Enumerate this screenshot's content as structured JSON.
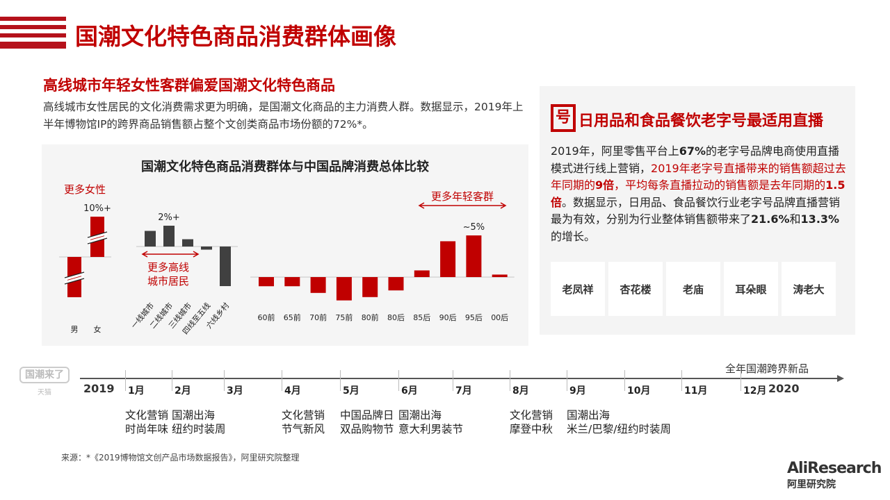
{
  "header": {
    "title": "国潮文化特色商品消费群体画像"
  },
  "left": {
    "subtitle": "高线城市年轻女性客群偏爱国潮文化特色商品",
    "paragraph": "高线城市女性居民的文化消费需求更为明确，是国潮文化商品的主力消费人群。数据显示，2019年上半年博物馆IP的跨界商品销售额占整个文创类商品市场份额的72%*。"
  },
  "chart_data": {
    "type": "bar",
    "title": "国潮文化特色商品消费群体与中国品牌消费总体比较",
    "groups": [
      {
        "categories": [
          "男",
          "女"
        ],
        "values": [
          -10,
          10
        ],
        "labels": [
          "",
          "10%+"
        ],
        "annotation": "更多女性",
        "axis_break": true,
        "color": "#c00000"
      },
      {
        "categories": [
          "一线城市",
          "二线城市",
          "三线城市",
          "四线至五线",
          "六线乡村"
        ],
        "values": [
          1.5,
          2.0,
          0.7,
          -0.3,
          -3.8
        ],
        "labels": [
          "",
          "2%+",
          "",
          "",
          ""
        ],
        "annotation": "更多高线城市居民",
        "color": "#404040"
      },
      {
        "categories": [
          "60前",
          "65前",
          "70前",
          "75前",
          "80前",
          "80后",
          "85后",
          "90后",
          "95后",
          "00后"
        ],
        "values": [
          -1.1,
          -1.1,
          -1.9,
          -2.8,
          -2.4,
          -1.6,
          0.8,
          4.3,
          5,
          0.3
        ],
        "labels": [
          "",
          "",
          "",
          "",
          "",
          "",
          "",
          "",
          "~5%",
          ""
        ],
        "annotation": "更多年轻客群",
        "color": "#c00000"
      }
    ]
  },
  "right": {
    "title": "日用品和食品餐饮老字号最适用直播",
    "icon": "号",
    "text": [
      [
        "2019年，阿里零售平台上",
        ""
      ],
      [
        "67%",
        "b"
      ],
      [
        "的老字号品牌电商使用直播模式进行线上营销，",
        ""
      ],
      [
        "2019年老字号直播带来的销售额超过去年同期的",
        "red"
      ],
      [
        "9倍",
        "red b"
      ],
      [
        "，平均每条直播拉动的销售额是去年同期的",
        "red"
      ],
      [
        "1.5倍",
        "red b"
      ],
      [
        "。数据显示，日用品、食品餐饮行业老字号品牌直播营销最为有效，分别为行业整体销售额带来了",
        ""
      ],
      [
        "21.6%",
        "b"
      ],
      [
        "和",
        ""
      ],
      [
        "13.3%",
        "b"
      ],
      [
        "的增长。",
        ""
      ]
    ],
    "logos": [
      "老凤祥",
      "杏花楼",
      "老庙",
      "耳朵眼",
      "涛老大"
    ]
  },
  "timeline": {
    "start": "2019",
    "end": "2020",
    "end_note": "全年国潮跨界新品",
    "logo": "国潮来了",
    "logo_sub": "天猫",
    "months": [
      "1月",
      "2月",
      "3月",
      "4月",
      "5月",
      "6月",
      "7月",
      "8月",
      "9月",
      "10月",
      "11月",
      "12月"
    ],
    "events": [
      {
        "month": "1月",
        "lines": [
          "文化营销",
          "时尚年味"
        ]
      },
      {
        "month": "2月",
        "lines": [
          "国潮出海",
          "纽约时装周"
        ]
      },
      {
        "month": "4月",
        "lines": [
          "文化营销",
          "节气新风"
        ]
      },
      {
        "month": "5月",
        "lines": [
          "中国品牌日",
          "双品购物节"
        ]
      },
      {
        "month": "6月",
        "lines": [
          "国潮出海",
          "意大利男装节"
        ]
      },
      {
        "month": "8月",
        "lines": [
          "文化营销",
          "摩登中秋"
        ]
      },
      {
        "month": "9月",
        "lines": [
          "国潮出海",
          "米兰/巴黎/纽约时装周"
        ]
      }
    ]
  },
  "source": "来源：*《2019博物馆文创产品市场数据报告》，阿里研究院整理",
  "brand": {
    "name": "AliResearch",
    "sub": "阿里研究院"
  }
}
